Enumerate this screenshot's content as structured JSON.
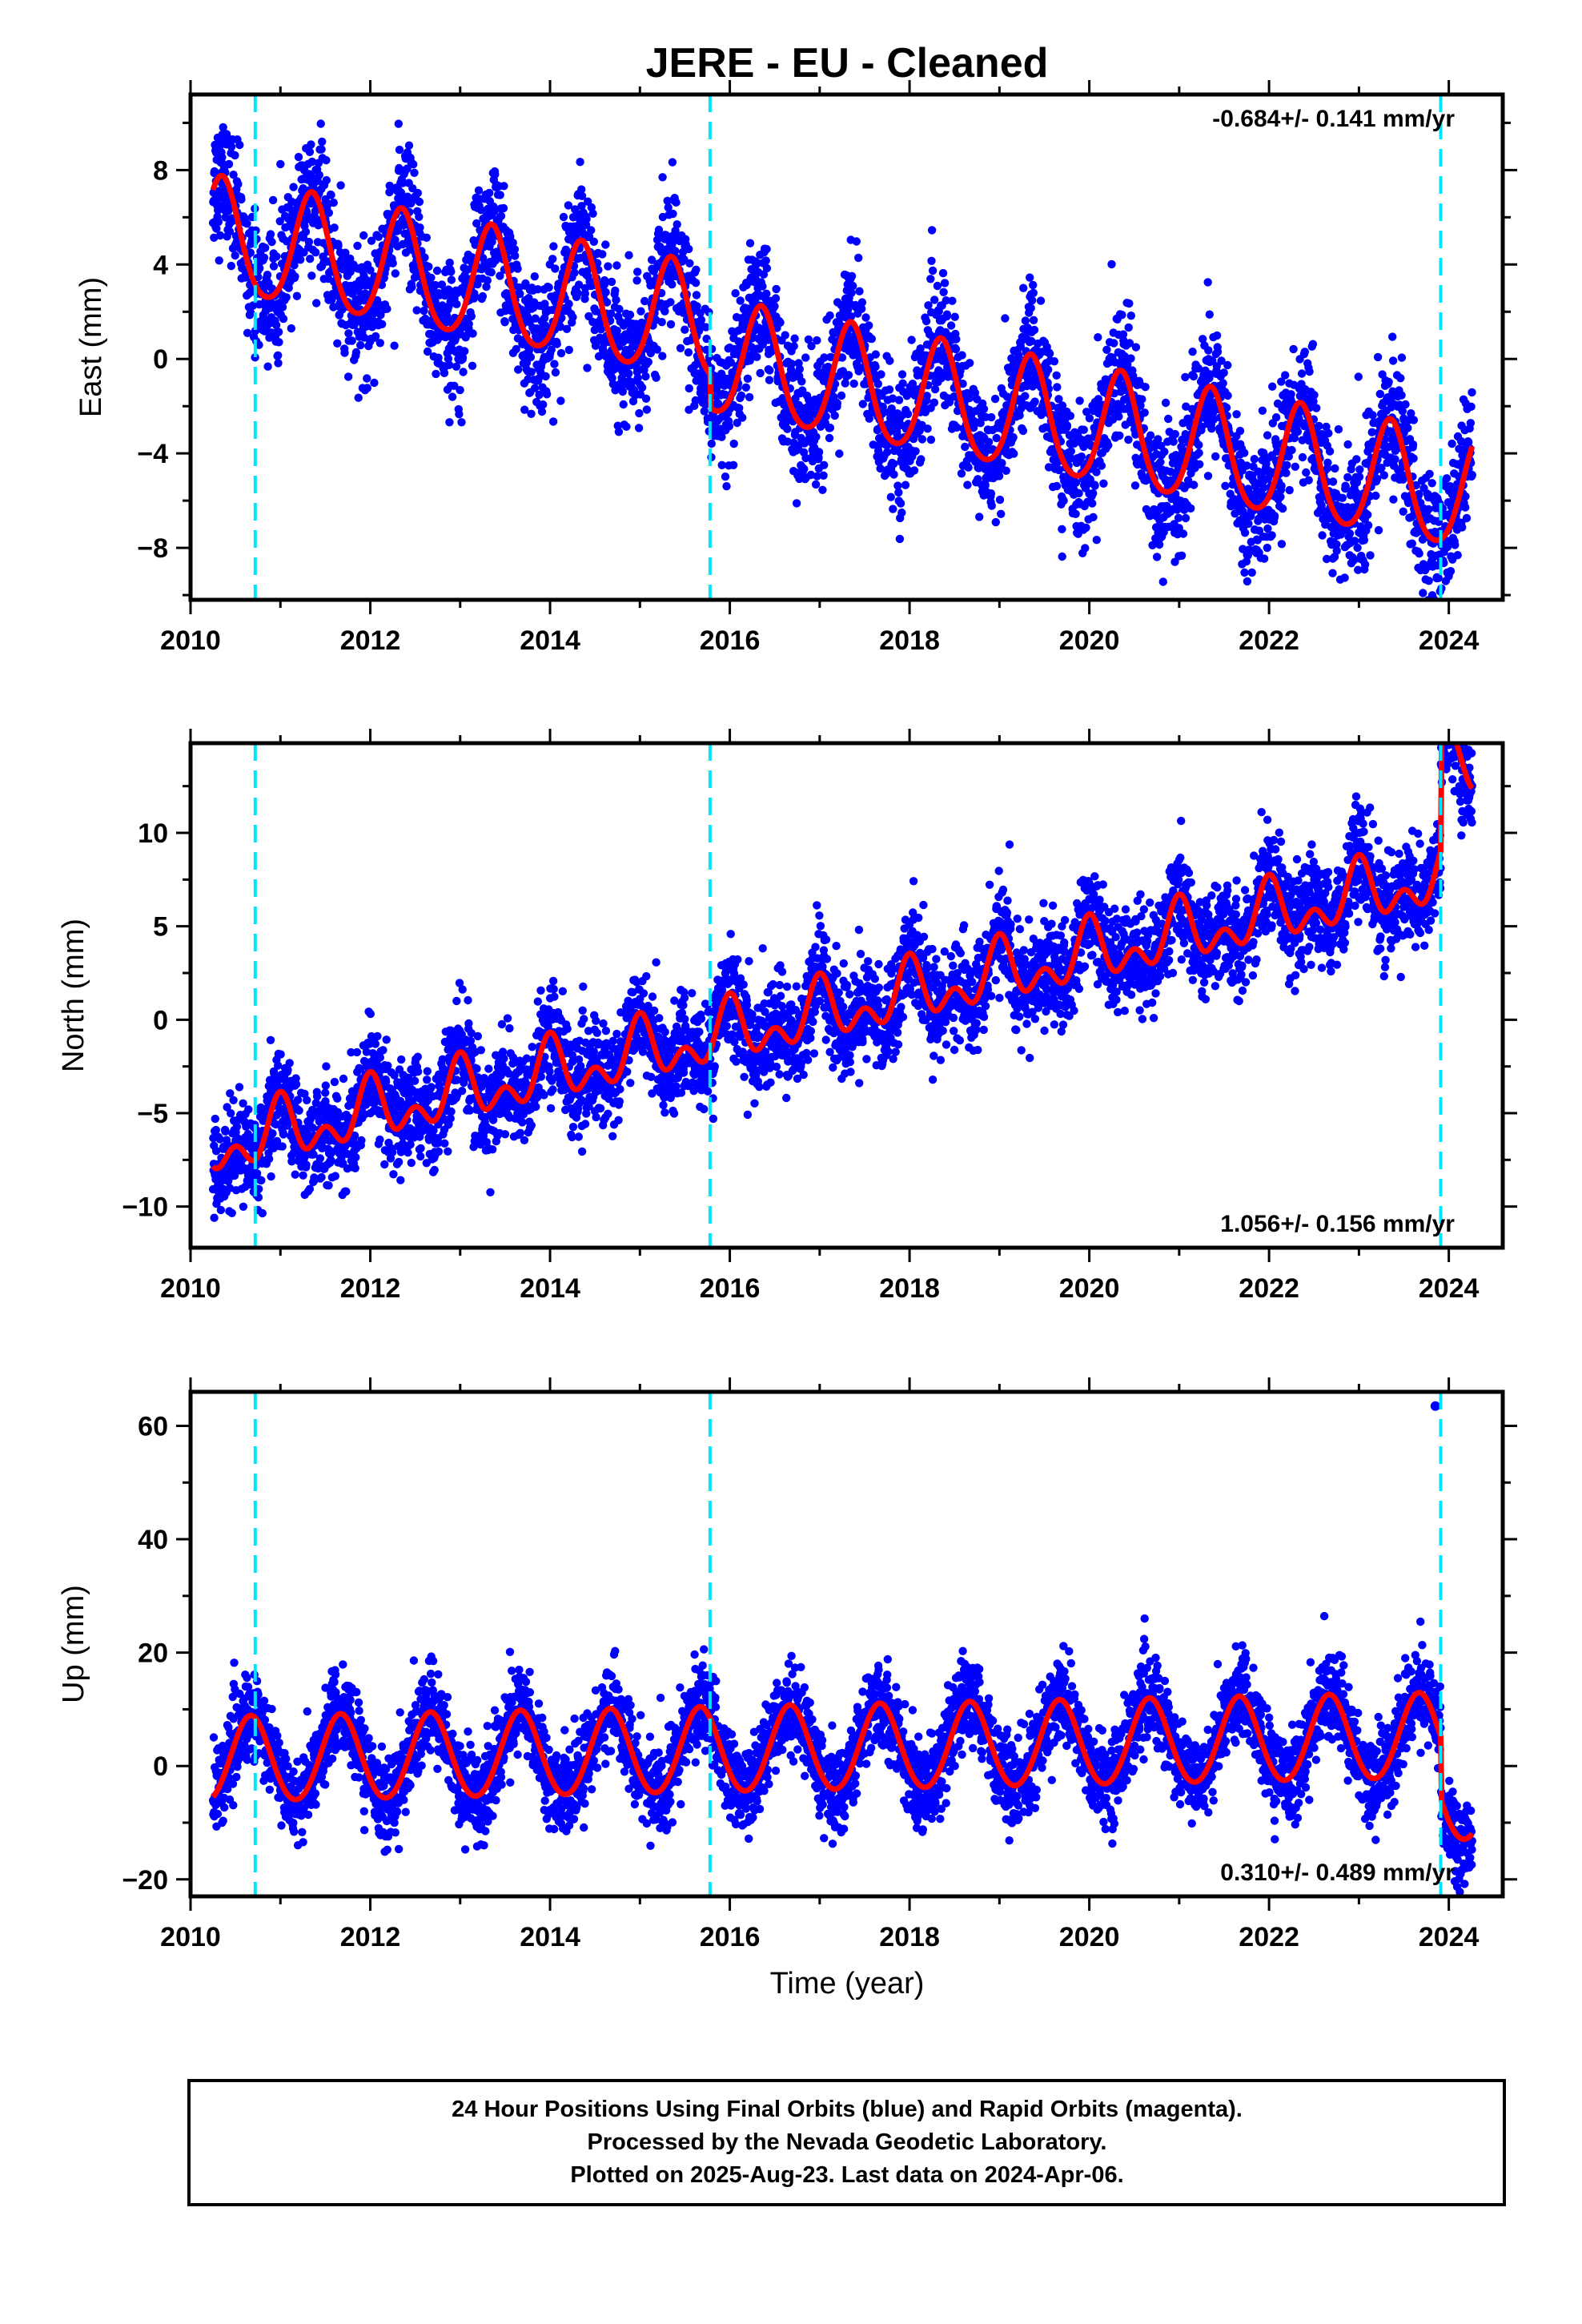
{
  "chart_data": {
    "type": "scatter",
    "title": "JERE  - EU - Cleaned",
    "xlabel": "Time (year)",
    "x_range": [
      2010,
      2024.6
    ],
    "x_ticks": [
      2010,
      2012,
      2014,
      2016,
      2018,
      2020,
      2022,
      2024
    ],
    "event_lines": [
      2010.72,
      2015.78,
      2023.91
    ],
    "colors": {
      "points": "#0000ff",
      "model": "#ff0000",
      "events": "#00e5ff"
    },
    "panels": [
      {
        "name": "east",
        "ylabel": "East (mm)",
        "ylim": [
          -10.2,
          11.2
        ],
        "y_ticks": [
          -8,
          -4,
          0,
          4,
          8
        ],
        "rate_label": "-0.684+/- 0.141 mm/yr",
        "rate_position": "top-right",
        "model": {
          "offset": 5.3,
          "trend": -0.684,
          "annual_amp": 2.4,
          "semi_amp": 0.3,
          "phase_peak": 0.35,
          "noise": 1.35,
          "steps": [
            [
              2015.78,
              -1.4
            ],
            [
              2023.91,
              0.0
            ]
          ]
        }
      },
      {
        "name": "north",
        "ylabel": "North (mm)",
        "ylim": [
          -12.2,
          14.8
        ],
        "y_ticks": [
          -10,
          -5,
          0,
          5,
          10
        ],
        "rate_label": "1.056+/- 0.156 mm/yr",
        "rate_position": "bottom-right",
        "model": {
          "offset": -7.1,
          "trend": 1.056,
          "annual_amp": 1.2,
          "semi_amp": 1.0,
          "phase_peak": 0.0,
          "noise": 1.35,
          "steps": [
            [
              2015.78,
              0.0
            ],
            [
              2023.91,
              5.5
            ]
          ]
        }
      },
      {
        "name": "up",
        "ylabel": "Up (mm)",
        "ylim": [
          -23,
          66
        ],
        "y_ticks": [
          -20,
          0,
          20,
          40,
          60
        ],
        "rate_label": "0.310+/- 0.489 mm/yr",
        "rate_position": "bottom-right",
        "model": {
          "offset": 0.8,
          "trend": 0.31,
          "annual_amp": 7.5,
          "semi_amp": 0.4,
          "phase_peak": 0.67,
          "noise": 3.8,
          "steps": [
            [
              2015.78,
              0.0
            ],
            [
              2023.91,
              -11.0
            ]
          ]
        },
        "outliers": [
          [
            2023.85,
            63.5
          ]
        ]
      }
    ]
  },
  "footer": {
    "line1": "24 Hour Positions Using Final Orbits (blue) and Rapid Orbits (magenta).",
    "line2": "Processed by the Nevada Geodetic Laboratory.",
    "line3": "Plotted on 2025-Aug-23. Last data on 2024-Apr-06."
  }
}
